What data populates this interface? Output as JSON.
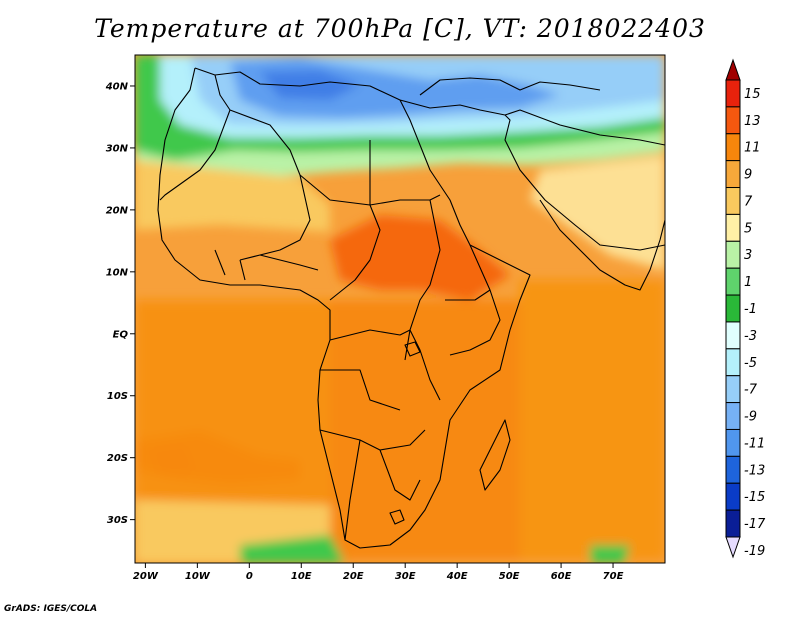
{
  "title": "Temperature at 700hPa [C], VT: 2018022403",
  "credit": "GrADS: IGES/COLA",
  "map": {
    "lon_range": [
      -22,
      80
    ],
    "lat_range": [
      -37,
      45
    ],
    "lat_ticks": [
      {
        "value": 40,
        "label": "40N"
      },
      {
        "value": 30,
        "label": "30N"
      },
      {
        "value": 20,
        "label": "20N"
      },
      {
        "value": 10,
        "label": "10N"
      },
      {
        "value": 0,
        "label": "EQ"
      },
      {
        "value": -10,
        "label": "10S"
      },
      {
        "value": -20,
        "label": "20S"
      },
      {
        "value": -30,
        "label": "30S"
      }
    ],
    "lon_ticks": [
      {
        "value": -20,
        "label": "20W"
      },
      {
        "value": -10,
        "label": "10W"
      },
      {
        "value": 0,
        "label": "0"
      },
      {
        "value": 10,
        "label": "10E"
      },
      {
        "value": 20,
        "label": "20E"
      },
      {
        "value": 30,
        "label": "30E"
      },
      {
        "value": 40,
        "label": "40E"
      },
      {
        "value": 50,
        "label": "50E"
      },
      {
        "value": 60,
        "label": "60E"
      },
      {
        "value": 70,
        "label": "70E"
      }
    ]
  },
  "colorbar": {
    "labels": [
      "15",
      "13",
      "11",
      "9",
      "7",
      "5",
      "3",
      "1",
      "-1",
      "-3",
      "-5",
      "-7",
      "-9",
      "-11",
      "-13",
      "-15",
      "-17",
      "-19"
    ],
    "colors": [
      "#a00000",
      "#e8220c",
      "#f5580f",
      "#f7860c",
      "#f7a83a",
      "#f9c95e",
      "#fff0a6",
      "#b9f2a6",
      "#5fd36c",
      "#2ab838",
      "#e0fffe",
      "#b4f0fb",
      "#96cef8",
      "#76b1f5",
      "#5096ee",
      "#1e64dc",
      "#0a3cc7",
      "#0a1e96",
      "#e6dcff"
    ]
  }
}
